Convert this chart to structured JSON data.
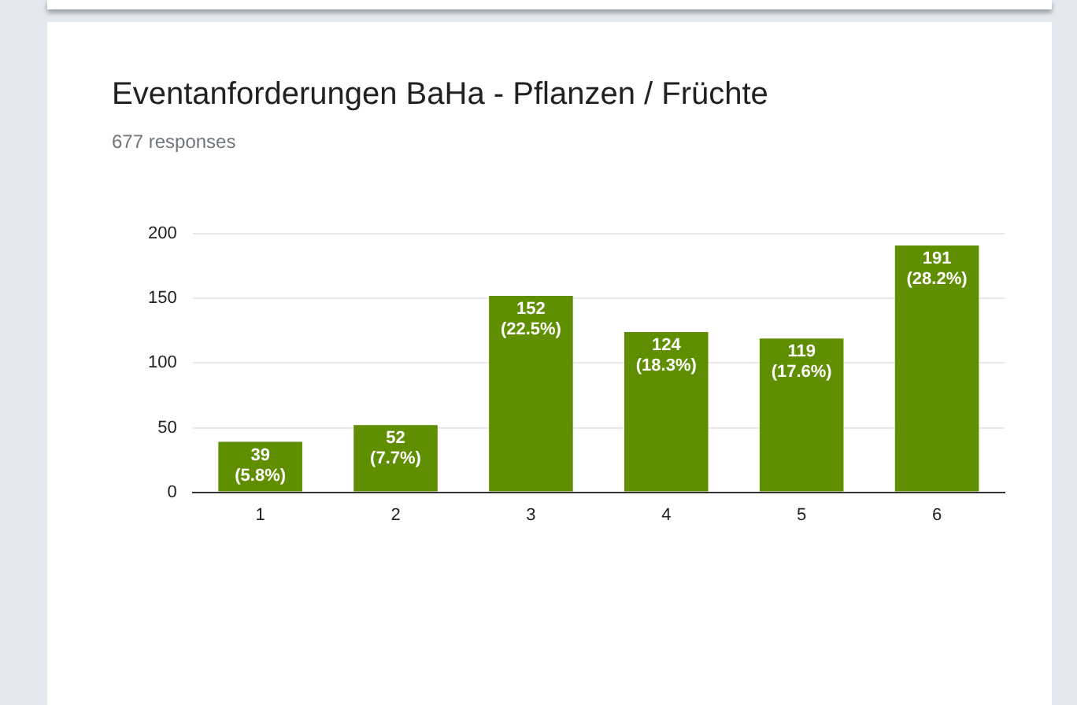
{
  "chart_data": {
    "type": "bar",
    "title": "Eventanforderungen BaHa - Pflanzen / Früchte",
    "subtitle": "677 responses",
    "categories": [
      "1",
      "2",
      "3",
      "4",
      "5",
      "6"
    ],
    "values": [
      39,
      52,
      152,
      124,
      119,
      191
    ],
    "value_labels": [
      "39\n(5.8%)",
      "52\n(7.7%)",
      "152\n(22.5%)",
      "124\n(18.3%)",
      "119\n(17.6%)",
      "191\n(28.2%)"
    ],
    "color": "#5f8f00",
    "ylim": [
      0,
      200
    ],
    "yticks": [
      0,
      50,
      100,
      150,
      200
    ],
    "grid": "y"
  }
}
